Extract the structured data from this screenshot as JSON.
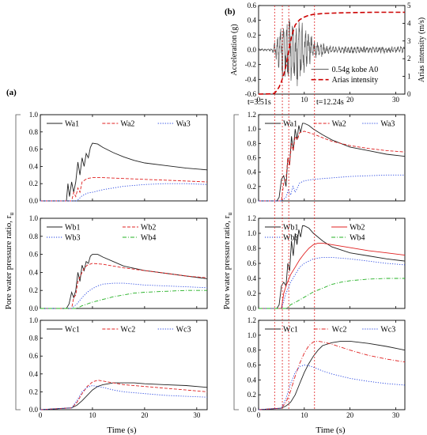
{
  "panel_labels": {
    "a": "(a)",
    "b": "(b)"
  },
  "shared": {
    "ylabel": "Pore water pressure ratio, r",
    "ylabel_sub": "u",
    "xlabel": "Time (s)",
    "x_ticks": [
      0,
      10,
      20,
      30
    ],
    "ru_ticks": [
      0.0,
      0.2,
      0.4,
      0.6,
      0.8,
      1.0
    ],
    "ru_ticks_b": [
      0.0,
      0.2,
      0.4,
      0.6,
      0.8,
      1.0,
      1.2
    ]
  },
  "annotations": {
    "t_start": "t=3.51s",
    "t_end": "t=12.24s",
    "marker_times": [
      3.51,
      5.2,
      6.6,
      12.24
    ]
  },
  "colors": {
    "black": "#222222",
    "red": "#e02020",
    "blue": "#1f3fe0",
    "green": "#22b022",
    "accel": "#555555",
    "arias": "#cc0000"
  },
  "chart_data": [
    {
      "id": "accel",
      "type": "line",
      "xlim": [
        0,
        32
      ],
      "ylim": [
        -0.6,
        0.6
      ],
      "y2lim": [
        0,
        5
      ],
      "ylabel": "Acceleration (g)",
      "y2label": "Arias intensity (m/s)",
      "y_ticks": [
        -0.6,
        -0.4,
        -0.2,
        0.0,
        0.2,
        0.4,
        0.6
      ],
      "y2_ticks": [
        0,
        1,
        2,
        3,
        4,
        5
      ],
      "series": [
        {
          "name": "0.54g kobe A0",
          "color": "#555555",
          "style": "solid",
          "axis": "y"
        },
        {
          "name": "Arias intensity",
          "color": "#cc0000",
          "style": "dash",
          "axis": "y2",
          "x": [
            0,
            3,
            3.5,
            4,
            4.5,
            5,
            5.5,
            6,
            6.5,
            7,
            7.5,
            8,
            9,
            10,
            11,
            12,
            14,
            17,
            20,
            25,
            32
          ],
          "y": [
            0,
            0.02,
            0.05,
            0.2,
            0.4,
            0.7,
            1.1,
            1.6,
            2.3,
            3.0,
            3.5,
            3.9,
            4.2,
            4.35,
            4.45,
            4.5,
            4.55,
            4.58,
            4.6,
            4.62,
            4.62
          ]
        }
      ]
    },
    {
      "id": "Wa",
      "type": "line",
      "xlim": [
        0,
        32
      ],
      "ylim": [
        0,
        1.0
      ],
      "series": [
        {
          "name": "Wa1",
          "color": "#222222",
          "style": "solid",
          "x": [
            0,
            5,
            5.3,
            5.6,
            6.0,
            6.4,
            6.8,
            7.2,
            7.6,
            8.0,
            8.4,
            8.8,
            9.2,
            9.6,
            10,
            11,
            12,
            14,
            16,
            18,
            20,
            24,
            28,
            32
          ],
          "y": [
            0,
            0,
            0.2,
            0.05,
            0.22,
            0.1,
            0.22,
            0.45,
            0.3,
            0.5,
            0.4,
            0.55,
            0.5,
            0.62,
            0.67,
            0.66,
            0.62,
            0.56,
            0.51,
            0.47,
            0.44,
            0.41,
            0.38,
            0.36
          ]
        },
        {
          "name": "Wa2",
          "color": "#e02020",
          "style": "dash",
          "x": [
            0,
            6,
            6.4,
            6.8,
            7.2,
            7.6,
            8.0,
            8.5,
            9,
            10,
            12,
            16,
            20,
            24,
            28,
            32
          ],
          "y": [
            0,
            0,
            0.1,
            0.05,
            0.15,
            0.1,
            0.22,
            0.24,
            0.26,
            0.27,
            0.27,
            0.26,
            0.25,
            0.24,
            0.23,
            0.22
          ]
        },
        {
          "name": "Wa3",
          "color": "#1f3fe0",
          "style": "dot",
          "x": [
            0,
            7,
            7.5,
            8,
            9,
            10,
            12,
            14,
            16,
            18,
            20,
            24,
            28,
            32
          ],
          "y": [
            0,
            0,
            0.03,
            0.06,
            0.09,
            0.1,
            0.13,
            0.15,
            0.17,
            0.18,
            0.19,
            0.2,
            0.2,
            0.19
          ]
        }
      ]
    },
    {
      "id": "Wb_a",
      "type": "line",
      "xlim": [
        0,
        32
      ],
      "ylim": [
        0,
        1.0
      ],
      "series": [
        {
          "name": "Wb1",
          "color": "#222222",
          "style": "solid",
          "x": [
            0,
            5,
            5.5,
            6,
            6.4,
            6.8,
            7.2,
            7.6,
            8,
            8.4,
            8.8,
            9.2,
            9.6,
            10,
            11,
            12,
            14,
            16,
            20,
            24,
            28,
            32
          ],
          "y": [
            0,
            0,
            0.05,
            0.18,
            0.12,
            0.2,
            0.4,
            0.3,
            0.48,
            0.42,
            0.52,
            0.5,
            0.58,
            0.6,
            0.6,
            0.57,
            0.52,
            0.47,
            0.42,
            0.39,
            0.36,
            0.33
          ]
        },
        {
          "name": "Wb2",
          "color": "#e02020",
          "style": "dash",
          "x": [
            0,
            6,
            6.4,
            6.8,
            7.2,
            7.6,
            8.0,
            8.5,
            9,
            10,
            12,
            14,
            16,
            20,
            24,
            28,
            32
          ],
          "y": [
            0,
            0,
            0.12,
            0.15,
            0.3,
            0.35,
            0.4,
            0.45,
            0.48,
            0.5,
            0.49,
            0.47,
            0.45,
            0.42,
            0.39,
            0.36,
            0.34
          ]
        },
        {
          "name": "Wb3",
          "color": "#1f3fe0",
          "style": "dot",
          "x": [
            0,
            6,
            7,
            8,
            9,
            10,
            11,
            12,
            14,
            16,
            18,
            20,
            24,
            28,
            32
          ],
          "y": [
            0,
            0,
            0.05,
            0.12,
            0.18,
            0.22,
            0.25,
            0.27,
            0.28,
            0.28,
            0.27,
            0.26,
            0.25,
            0.24,
            0.23
          ]
        },
        {
          "name": "Wb4",
          "color": "#22b022",
          "style": "dashdot",
          "x": [
            0,
            7,
            8,
            10,
            12,
            14,
            16,
            18,
            20,
            24,
            28,
            32
          ],
          "y": [
            0,
            0,
            0.03,
            0.07,
            0.1,
            0.13,
            0.15,
            0.17,
            0.18,
            0.19,
            0.2,
            0.2
          ]
        }
      ]
    },
    {
      "id": "Wc_a",
      "type": "line",
      "xlim": [
        0,
        32
      ],
      "ylim": [
        0,
        1.0
      ],
      "series": [
        {
          "name": "Wc1",
          "color": "#222222",
          "style": "solid",
          "x": [
            0,
            6,
            7,
            8,
            9,
            10,
            11,
            12,
            14,
            16,
            18,
            20,
            24,
            28,
            32
          ],
          "y": [
            0,
            0.02,
            0.05,
            0.1,
            0.16,
            0.22,
            0.26,
            0.28,
            0.3,
            0.3,
            0.3,
            0.29,
            0.28,
            0.27,
            0.25
          ]
        },
        {
          "name": "Wc2",
          "color": "#e02020",
          "style": "dash",
          "x": [
            0,
            6,
            7,
            8,
            9,
            10,
            11,
            12,
            14,
            16,
            20,
            24,
            28,
            32
          ],
          "y": [
            0,
            0.02,
            0.08,
            0.18,
            0.26,
            0.31,
            0.33,
            0.32,
            0.3,
            0.28,
            0.26,
            0.24,
            0.22,
            0.2
          ]
        },
        {
          "name": "Wc3",
          "color": "#1f3fe0",
          "style": "dot",
          "x": [
            0,
            6,
            7,
            8,
            9,
            10,
            12,
            14,
            16,
            20,
            24,
            28,
            32
          ],
          "y": [
            0,
            0.02,
            0.1,
            0.2,
            0.25,
            0.27,
            0.25,
            0.22,
            0.2,
            0.18,
            0.16,
            0.15,
            0.14
          ]
        }
      ]
    },
    {
      "id": "Wa_b",
      "type": "line",
      "xlim": [
        0,
        32
      ],
      "ylim": [
        0,
        1.2
      ],
      "series": [
        {
          "name": "Wa1",
          "color": "#222222",
          "style": "solid",
          "x": [
            0,
            4,
            4.5,
            5,
            5.5,
            6,
            6.4,
            6.8,
            7.2,
            7.6,
            8,
            8.4,
            8.8,
            9.2,
            9.6,
            10,
            11,
            12,
            14,
            16,
            20,
            24,
            28,
            32
          ],
          "y": [
            0,
            0,
            0.05,
            0.3,
            0.35,
            0.2,
            0.6,
            0.5,
            0.9,
            0.7,
            1.0,
            0.85,
            1.05,
            0.95,
            1.08,
            1.08,
            1.05,
            1.0,
            0.92,
            0.85,
            0.75,
            0.7,
            0.65,
            0.62
          ]
        },
        {
          "name": "Wa2",
          "color": "#e02020",
          "style": "dash",
          "x": [
            0,
            5,
            5.5,
            6,
            6.4,
            6.8,
            7.2,
            7.6,
            8,
            8.5,
            9,
            10,
            11,
            12,
            14,
            16,
            20,
            24,
            28,
            32
          ],
          "y": [
            0,
            0,
            0.25,
            0.3,
            0.6,
            0.5,
            0.8,
            0.7,
            0.9,
            0.85,
            0.95,
            0.97,
            0.95,
            0.93,
            0.88,
            0.83,
            0.77,
            0.73,
            0.7,
            0.68
          ]
        },
        {
          "name": "Wa3",
          "color": "#1f3fe0",
          "style": "dot",
          "x": [
            0,
            5,
            6,
            6.5,
            7,
            7.5,
            8,
            9,
            10,
            12,
            14,
            16,
            20,
            24,
            28,
            32
          ],
          "y": [
            0,
            0,
            0.05,
            0.15,
            0.08,
            0.2,
            0.12,
            0.25,
            0.28,
            0.3,
            0.31,
            0.32,
            0.34,
            0.35,
            0.36,
            0.36
          ]
        }
      ]
    },
    {
      "id": "Wb_b",
      "type": "line",
      "xlim": [
        0,
        32
      ],
      "ylim": [
        0,
        1.2
      ],
      "series": [
        {
          "name": "Wb1",
          "color": "#222222",
          "style": "solid",
          "x": [
            0,
            4,
            4.5,
            5,
            5.5,
            6,
            6.4,
            6.8,
            7.2,
            7.6,
            8,
            8.4,
            8.8,
            9.2,
            9.6,
            10,
            11,
            12,
            14,
            16,
            20,
            24,
            28,
            32
          ],
          "y": [
            0,
            0,
            0.05,
            0.3,
            0.35,
            0.3,
            0.6,
            0.5,
            0.9,
            0.7,
            1.0,
            0.85,
            1.05,
            0.95,
            1.1,
            1.1,
            1.07,
            1.0,
            0.9,
            0.82,
            0.74,
            0.7,
            0.66,
            0.63
          ]
        },
        {
          "name": "Wb2",
          "color": "#e02020",
          "style": "solid",
          "x": [
            0,
            5,
            5.5,
            6,
            7,
            8,
            9,
            10,
            11,
            12,
            13,
            14,
            16,
            20,
            24,
            28,
            32
          ],
          "y": [
            0,
            0,
            0.2,
            0.3,
            0.45,
            0.55,
            0.65,
            0.73,
            0.8,
            0.85,
            0.87,
            0.87,
            0.85,
            0.81,
            0.77,
            0.74,
            0.71
          ]
        },
        {
          "name": "Wb3",
          "color": "#1f3fe0",
          "style": "dot",
          "x": [
            0,
            5,
            6,
            7,
            8,
            9,
            10,
            11,
            12,
            14,
            16,
            20,
            24,
            28,
            32
          ],
          "y": [
            0,
            0,
            0.2,
            0.35,
            0.45,
            0.55,
            0.6,
            0.63,
            0.66,
            0.68,
            0.68,
            0.66,
            0.63,
            0.6,
            0.58
          ]
        },
        {
          "name": "Wb4",
          "color": "#22b022",
          "style": "dashdot",
          "x": [
            0,
            6,
            6.5,
            7,
            8,
            10,
            12,
            14,
            16,
            18,
            20,
            24,
            28,
            32
          ],
          "y": [
            0,
            0,
            0.02,
            0.05,
            0.08,
            0.15,
            0.22,
            0.27,
            0.32,
            0.35,
            0.37,
            0.39,
            0.4,
            0.4
          ]
        }
      ]
    },
    {
      "id": "Wc_b",
      "type": "line",
      "xlim": [
        0,
        32
      ],
      "ylim": [
        0,
        1.2
      ],
      "series": [
        {
          "name": "Wc1",
          "color": "#222222",
          "style": "solid",
          "x": [
            0,
            5,
            6,
            7,
            8,
            9,
            10,
            11,
            12,
            13,
            14,
            16,
            18,
            20,
            24,
            28,
            32
          ],
          "y": [
            0,
            0.02,
            0.05,
            0.1,
            0.2,
            0.35,
            0.5,
            0.62,
            0.72,
            0.8,
            0.86,
            0.9,
            0.92,
            0.92,
            0.89,
            0.85,
            0.8
          ]
        },
        {
          "name": "Wc2",
          "color": "#e02020",
          "style": "dashdot",
          "x": [
            0,
            5,
            6,
            7,
            8,
            9,
            10,
            11,
            12,
            13,
            14,
            16,
            20,
            24,
            28,
            32
          ],
          "y": [
            0,
            0.02,
            0.1,
            0.25,
            0.45,
            0.62,
            0.76,
            0.86,
            0.91,
            0.92,
            0.91,
            0.88,
            0.8,
            0.73,
            0.68,
            0.64
          ]
        },
        {
          "name": "Wc3",
          "color": "#1f3fe0",
          "style": "dot",
          "x": [
            0,
            5,
            6,
            7,
            8,
            9,
            10,
            11,
            12,
            14,
            16,
            20,
            24,
            28,
            32
          ],
          "y": [
            0,
            0.02,
            0.15,
            0.35,
            0.5,
            0.58,
            0.6,
            0.59,
            0.57,
            0.52,
            0.48,
            0.42,
            0.38,
            0.35,
            0.33
          ]
        }
      ]
    }
  ]
}
